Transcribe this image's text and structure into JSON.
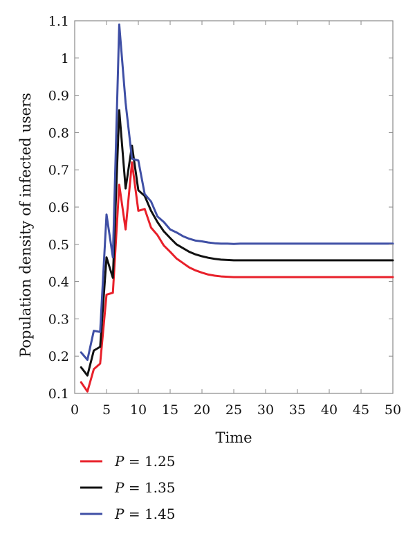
{
  "chart_data": {
    "type": "line",
    "title": "",
    "xlabel": "Time",
    "ylabel": "Population density of infected users",
    "xlim": [
      0,
      50
    ],
    "ylim": [
      0.1,
      1.1
    ],
    "xticks": [
      0,
      5,
      10,
      15,
      20,
      25,
      30,
      35,
      40,
      45,
      50
    ],
    "yticks": [
      0.1,
      0.2,
      0.3,
      0.4,
      0.5,
      0.6,
      0.7,
      0.8,
      0.9,
      1,
      1.1
    ],
    "grid": false,
    "legend_position": "bottom-left",
    "x": [
      1,
      2,
      3,
      4,
      5,
      6,
      7,
      8,
      9,
      10,
      11,
      12,
      13,
      14,
      15,
      16,
      17,
      18,
      19,
      20,
      21,
      22,
      23,
      24,
      25,
      26,
      27,
      28,
      29,
      30,
      31,
      32,
      33,
      34,
      35,
      36,
      37,
      38,
      39,
      40,
      41,
      42,
      43,
      44,
      45,
      46,
      47,
      48,
      49,
      50
    ],
    "series": [
      {
        "name": "P = 1.25",
        "legend_var": "P",
        "legend_value": "= 1.25",
        "color": "#e8202a",
        "values": [
          0.13,
          0.105,
          0.165,
          0.18,
          0.365,
          0.37,
          0.66,
          0.54,
          0.72,
          0.59,
          0.595,
          0.545,
          0.525,
          0.497,
          0.48,
          0.462,
          0.45,
          0.438,
          0.43,
          0.424,
          0.419,
          0.416,
          0.414,
          0.413,
          0.412,
          0.412,
          0.412,
          0.412,
          0.412,
          0.412,
          0.412,
          0.412,
          0.412,
          0.412,
          0.412,
          0.412,
          0.412,
          0.412,
          0.412,
          0.412,
          0.412,
          0.412,
          0.412,
          0.412,
          0.412,
          0.412,
          0.412,
          0.412,
          0.412,
          0.412
        ]
      },
      {
        "name": "P = 1.35",
        "legend_var": "P",
        "legend_value": "= 1.35",
        "color": "#111111",
        "values": [
          0.17,
          0.148,
          0.215,
          0.225,
          0.465,
          0.41,
          0.86,
          0.65,
          0.765,
          0.645,
          0.63,
          0.59,
          0.56,
          0.535,
          0.517,
          0.5,
          0.49,
          0.48,
          0.473,
          0.468,
          0.464,
          0.461,
          0.459,
          0.458,
          0.457,
          0.457,
          0.457,
          0.457,
          0.457,
          0.457,
          0.457,
          0.457,
          0.457,
          0.457,
          0.457,
          0.457,
          0.457,
          0.457,
          0.457,
          0.457,
          0.457,
          0.457,
          0.457,
          0.457,
          0.457,
          0.457,
          0.457,
          0.457,
          0.457,
          0.457
        ]
      },
      {
        "name": "P = 1.45",
        "legend_var": "P",
        "legend_value": "= 1.45",
        "color": "#3f4fa5",
        "values": [
          0.21,
          0.19,
          0.268,
          0.265,
          0.58,
          0.465,
          1.09,
          0.88,
          0.73,
          0.725,
          0.635,
          0.615,
          0.575,
          0.56,
          0.54,
          0.532,
          0.522,
          0.515,
          0.51,
          0.508,
          0.505,
          0.503,
          0.502,
          0.502,
          0.501,
          0.502,
          0.502,
          0.502,
          0.502,
          0.502,
          0.502,
          0.502,
          0.502,
          0.502,
          0.502,
          0.502,
          0.502,
          0.502,
          0.502,
          0.502,
          0.502,
          0.502,
          0.502,
          0.502,
          0.502,
          0.502,
          0.502,
          0.502,
          0.502,
          0.502
        ]
      }
    ]
  }
}
